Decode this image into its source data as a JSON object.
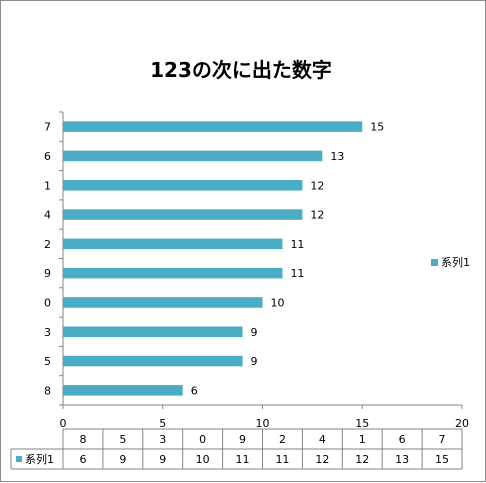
{
  "chart_data": {
    "type": "bar",
    "orientation": "horizontal",
    "title": "123の次に出た数字",
    "categories": [
      "7",
      "6",
      "1",
      "4",
      "2",
      "9",
      "0",
      "3",
      "5",
      "8"
    ],
    "series": [
      {
        "name": "系列1",
        "values": [
          15,
          13,
          12,
          12,
          11,
          11,
          10,
          9,
          9,
          6
        ],
        "color": "#4bacc6"
      }
    ],
    "xlim": [
      0,
      20
    ],
    "x_ticks": [
      "0",
      "5",
      "10",
      "15",
      "20"
    ],
    "grid": false,
    "legend": "right",
    "data_table": true
  }
}
